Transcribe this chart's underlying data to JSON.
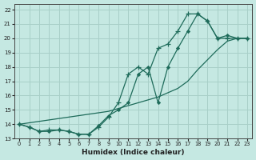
{
  "xlabel": "Humidex (Indice chaleur)",
  "bg_color": "#c5e8e2",
  "grid_color": "#a8cfc8",
  "line_color": "#1e6b5a",
  "xlim": [
    -0.5,
    23.5
  ],
  "ylim": [
    13,
    22.4
  ],
  "xticks": [
    0,
    1,
    2,
    3,
    4,
    5,
    6,
    7,
    8,
    9,
    10,
    11,
    12,
    13,
    14,
    15,
    16,
    17,
    18,
    19,
    20,
    21,
    22,
    23
  ],
  "yticks": [
    13,
    14,
    15,
    16,
    17,
    18,
    19,
    20,
    21,
    22
  ],
  "line_smooth_x": [
    0,
    1,
    2,
    3,
    4,
    5,
    6,
    7,
    8,
    9,
    10,
    11,
    12,
    13,
    14,
    15,
    16,
    17,
    18,
    19,
    20,
    21,
    22,
    23
  ],
  "line_smooth_y": [
    14.0,
    14.1,
    14.2,
    14.3,
    14.4,
    14.5,
    14.6,
    14.7,
    14.8,
    14.9,
    15.1,
    15.3,
    15.5,
    15.7,
    15.9,
    16.2,
    16.5,
    17.0,
    17.8,
    18.5,
    19.2,
    19.8,
    20.0,
    20.0
  ],
  "line_plus_x": [
    0,
    1,
    2,
    3,
    4,
    5,
    6,
    7,
    8,
    9,
    10,
    11,
    12,
    13,
    14,
    15,
    16,
    17,
    18,
    19,
    20,
    21,
    22,
    23
  ],
  "line_plus_y": [
    14.0,
    13.8,
    13.5,
    13.6,
    13.6,
    13.5,
    13.3,
    13.3,
    13.8,
    14.5,
    15.5,
    17.5,
    18.0,
    17.5,
    19.3,
    19.6,
    20.5,
    21.7,
    21.7,
    21.2,
    20.0,
    20.0,
    20.0,
    20.0
  ],
  "line_dia_x": [
    0,
    1,
    2,
    3,
    4,
    5,
    6,
    7,
    8,
    9,
    10,
    11,
    12,
    13,
    14,
    15,
    16,
    17,
    18,
    19,
    20,
    21,
    22,
    23
  ],
  "line_dia_y": [
    14.0,
    13.8,
    13.5,
    13.5,
    13.6,
    13.5,
    13.3,
    13.3,
    13.9,
    14.6,
    15.0,
    15.5,
    17.5,
    18.0,
    15.5,
    18.0,
    19.3,
    20.5,
    21.7,
    21.2,
    20.0,
    20.2,
    20.0,
    20.0
  ]
}
